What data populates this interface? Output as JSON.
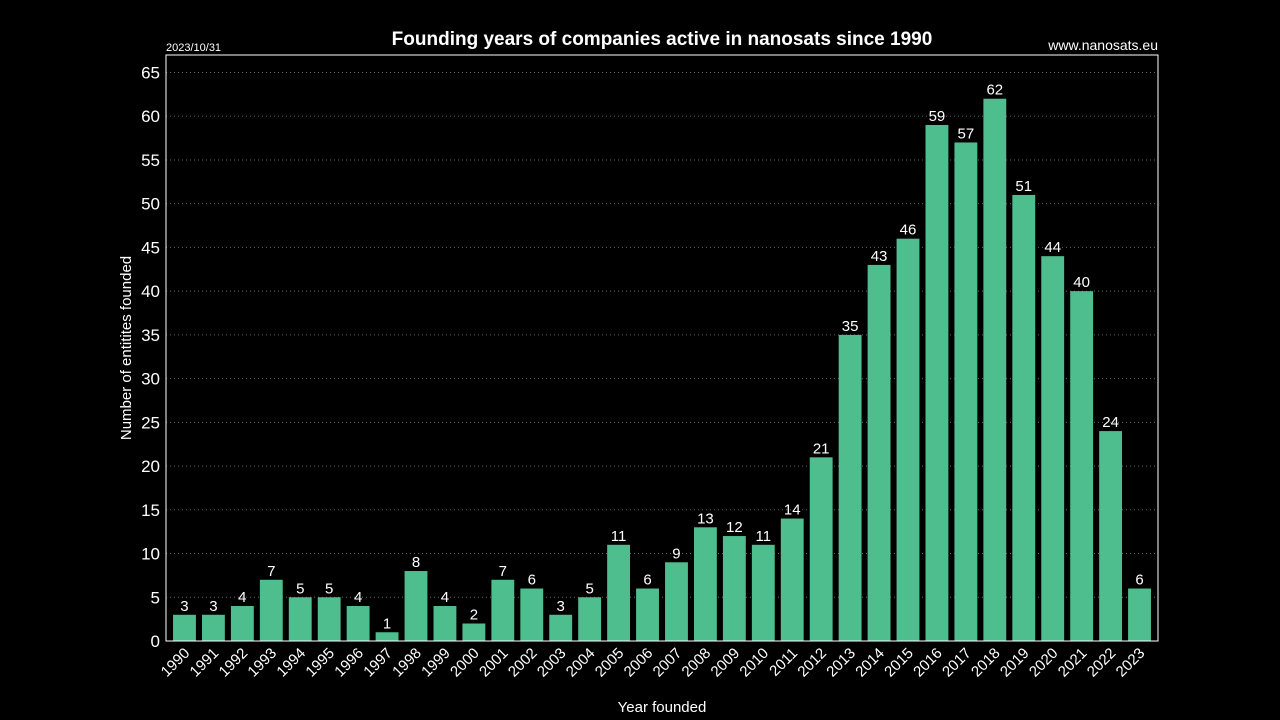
{
  "header": {
    "date": "2023/10/31",
    "website": "www.nanosats.eu"
  },
  "chart_data": {
    "type": "bar",
    "title": "Founding years of companies active in nanosats since 1990",
    "xlabel": "Year founded",
    "ylabel": "Number of entitites founded",
    "ylim": [
      0,
      67
    ],
    "yticks": [
      0,
      5,
      10,
      15,
      20,
      25,
      30,
      35,
      40,
      45,
      50,
      55,
      60,
      65
    ],
    "grid": "horizontal-dotted",
    "categories": [
      "1990",
      "1991",
      "1992",
      "1993",
      "1994",
      "1995",
      "1996",
      "1997",
      "1998",
      "1999",
      "2000",
      "2001",
      "2002",
      "2003",
      "2004",
      "2005",
      "2006",
      "2007",
      "2008",
      "2009",
      "2010",
      "2011",
      "2012",
      "2013",
      "2014",
      "2015",
      "2016",
      "2017",
      "2018",
      "2019",
      "2020",
      "2021",
      "2022",
      "2023"
    ],
    "values": [
      3,
      3,
      4,
      7,
      5,
      5,
      4,
      1,
      8,
      4,
      2,
      7,
      6,
      3,
      5,
      11,
      6,
      9,
      13,
      12,
      11,
      14,
      21,
      35,
      43,
      46,
      59,
      57,
      62,
      51,
      44,
      40,
      24,
      6
    ],
    "colors": {
      "bar": "#4fbe8f",
      "background": "#000000",
      "text": "#ffffff",
      "grid": "#666666"
    }
  }
}
